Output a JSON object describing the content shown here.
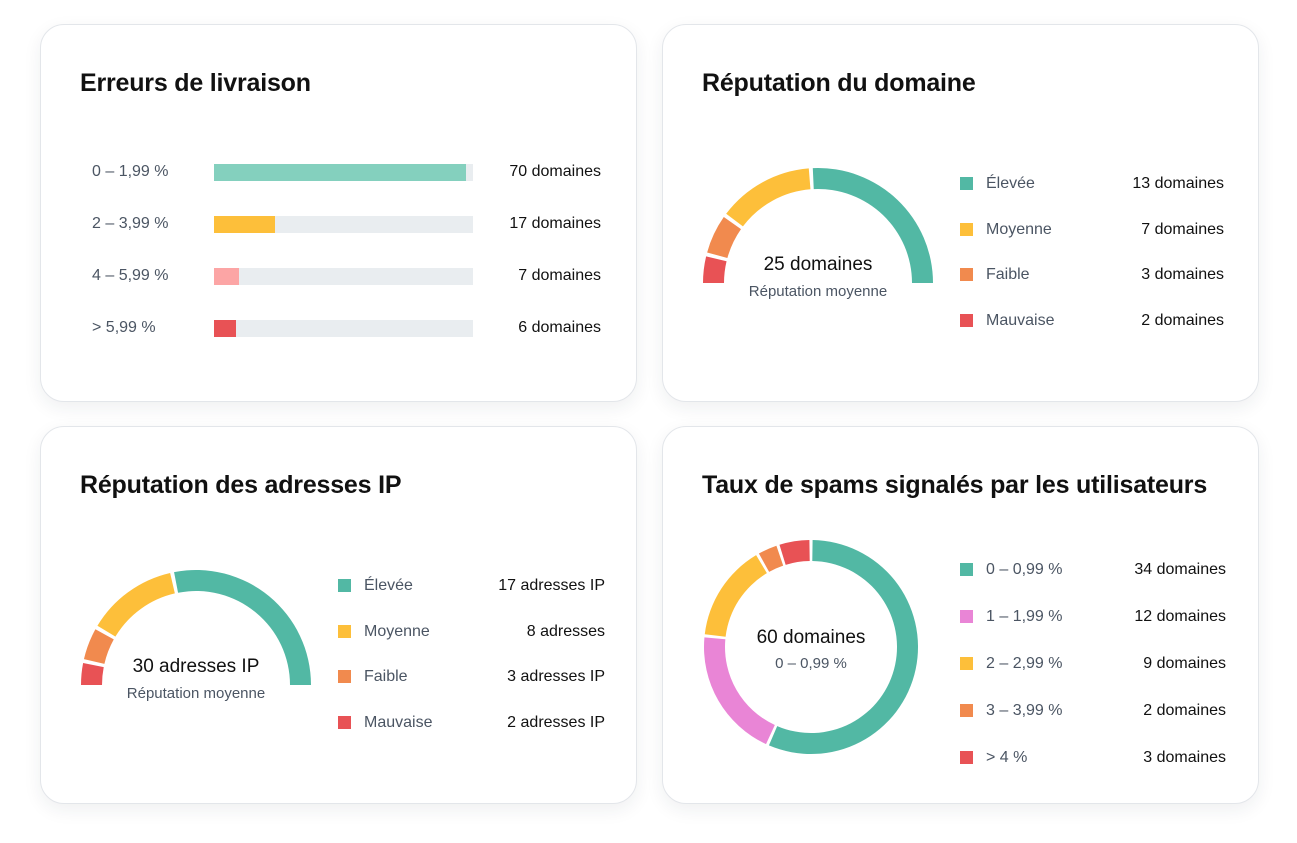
{
  "colors": {
    "green": "#52b8a4",
    "teal_light": "#84d0be",
    "yellow": "#fdbf3a",
    "orange": "#f18a4e",
    "red": "#e85255",
    "pink_light": "#fca5a5",
    "pink": "#e985d6",
    "track": "#e9edf0"
  },
  "chart_data": [
    {
      "type": "bar",
      "title": "Erreurs de livraison",
      "categories": [
        "0 – 1,99 %",
        "2 – 3,99 %",
        "4 – 5,99 %",
        "> 5,99 %"
      ],
      "values": [
        70,
        17,
        7,
        6
      ],
      "value_labels": [
        "70 domaines",
        "17 domaines",
        "7 domaines",
        "6 domaines"
      ],
      "colors": [
        "#84d0be",
        "#fdbf3a",
        "#fca5a5",
        "#e85255"
      ],
      "xlim": [
        0,
        72
      ]
    },
    {
      "type": "pie",
      "title": "Réputation du domaine",
      "center": {
        "main": "25 domaines",
        "sub": "Réputation moyenne"
      },
      "categories": [
        "Élevée",
        "Moyenne",
        "Faible",
        "Mauvaise"
      ],
      "values": [
        13,
        7,
        3,
        2
      ],
      "value_labels": [
        "13 domaines",
        "7 domaines",
        "3 domaines",
        "2 domaines"
      ],
      "colors": [
        "#52b8a4",
        "#fdbf3a",
        "#f18a4e",
        "#e85255"
      ]
    },
    {
      "type": "pie",
      "title": "Réputation des adresses IP",
      "center": {
        "main": "30 adresses IP",
        "sub": "Réputation moyenne"
      },
      "categories": [
        "Élevée",
        "Moyenne",
        "Faible",
        "Mauvaise"
      ],
      "values": [
        17,
        8,
        3,
        2
      ],
      "value_labels": [
        "17 adresses IP",
        "8 adresses",
        "3 adresses IP",
        "2 adresses IP"
      ],
      "colors": [
        "#52b8a4",
        "#fdbf3a",
        "#f18a4e",
        "#e85255"
      ]
    },
    {
      "type": "pie",
      "title": "Taux de spams signalés par les utilisateurs",
      "center": {
        "main": "60 domaines",
        "sub": "0 – 0,99 %"
      },
      "categories": [
        "0 – 0,99 %",
        "1 – 1,99 %",
        "2 – 2,99 %",
        "3 – 3,99 %",
        "> 4 %"
      ],
      "values": [
        34,
        12,
        9,
        2,
        3
      ],
      "value_labels": [
        "34 domaines",
        "12 domaines",
        "9 domaines",
        "2 domaines",
        "3 domaines"
      ],
      "colors": [
        "#52b8a4",
        "#e985d6",
        "#fdbf3a",
        "#f18a4e",
        "#e85255"
      ]
    }
  ]
}
